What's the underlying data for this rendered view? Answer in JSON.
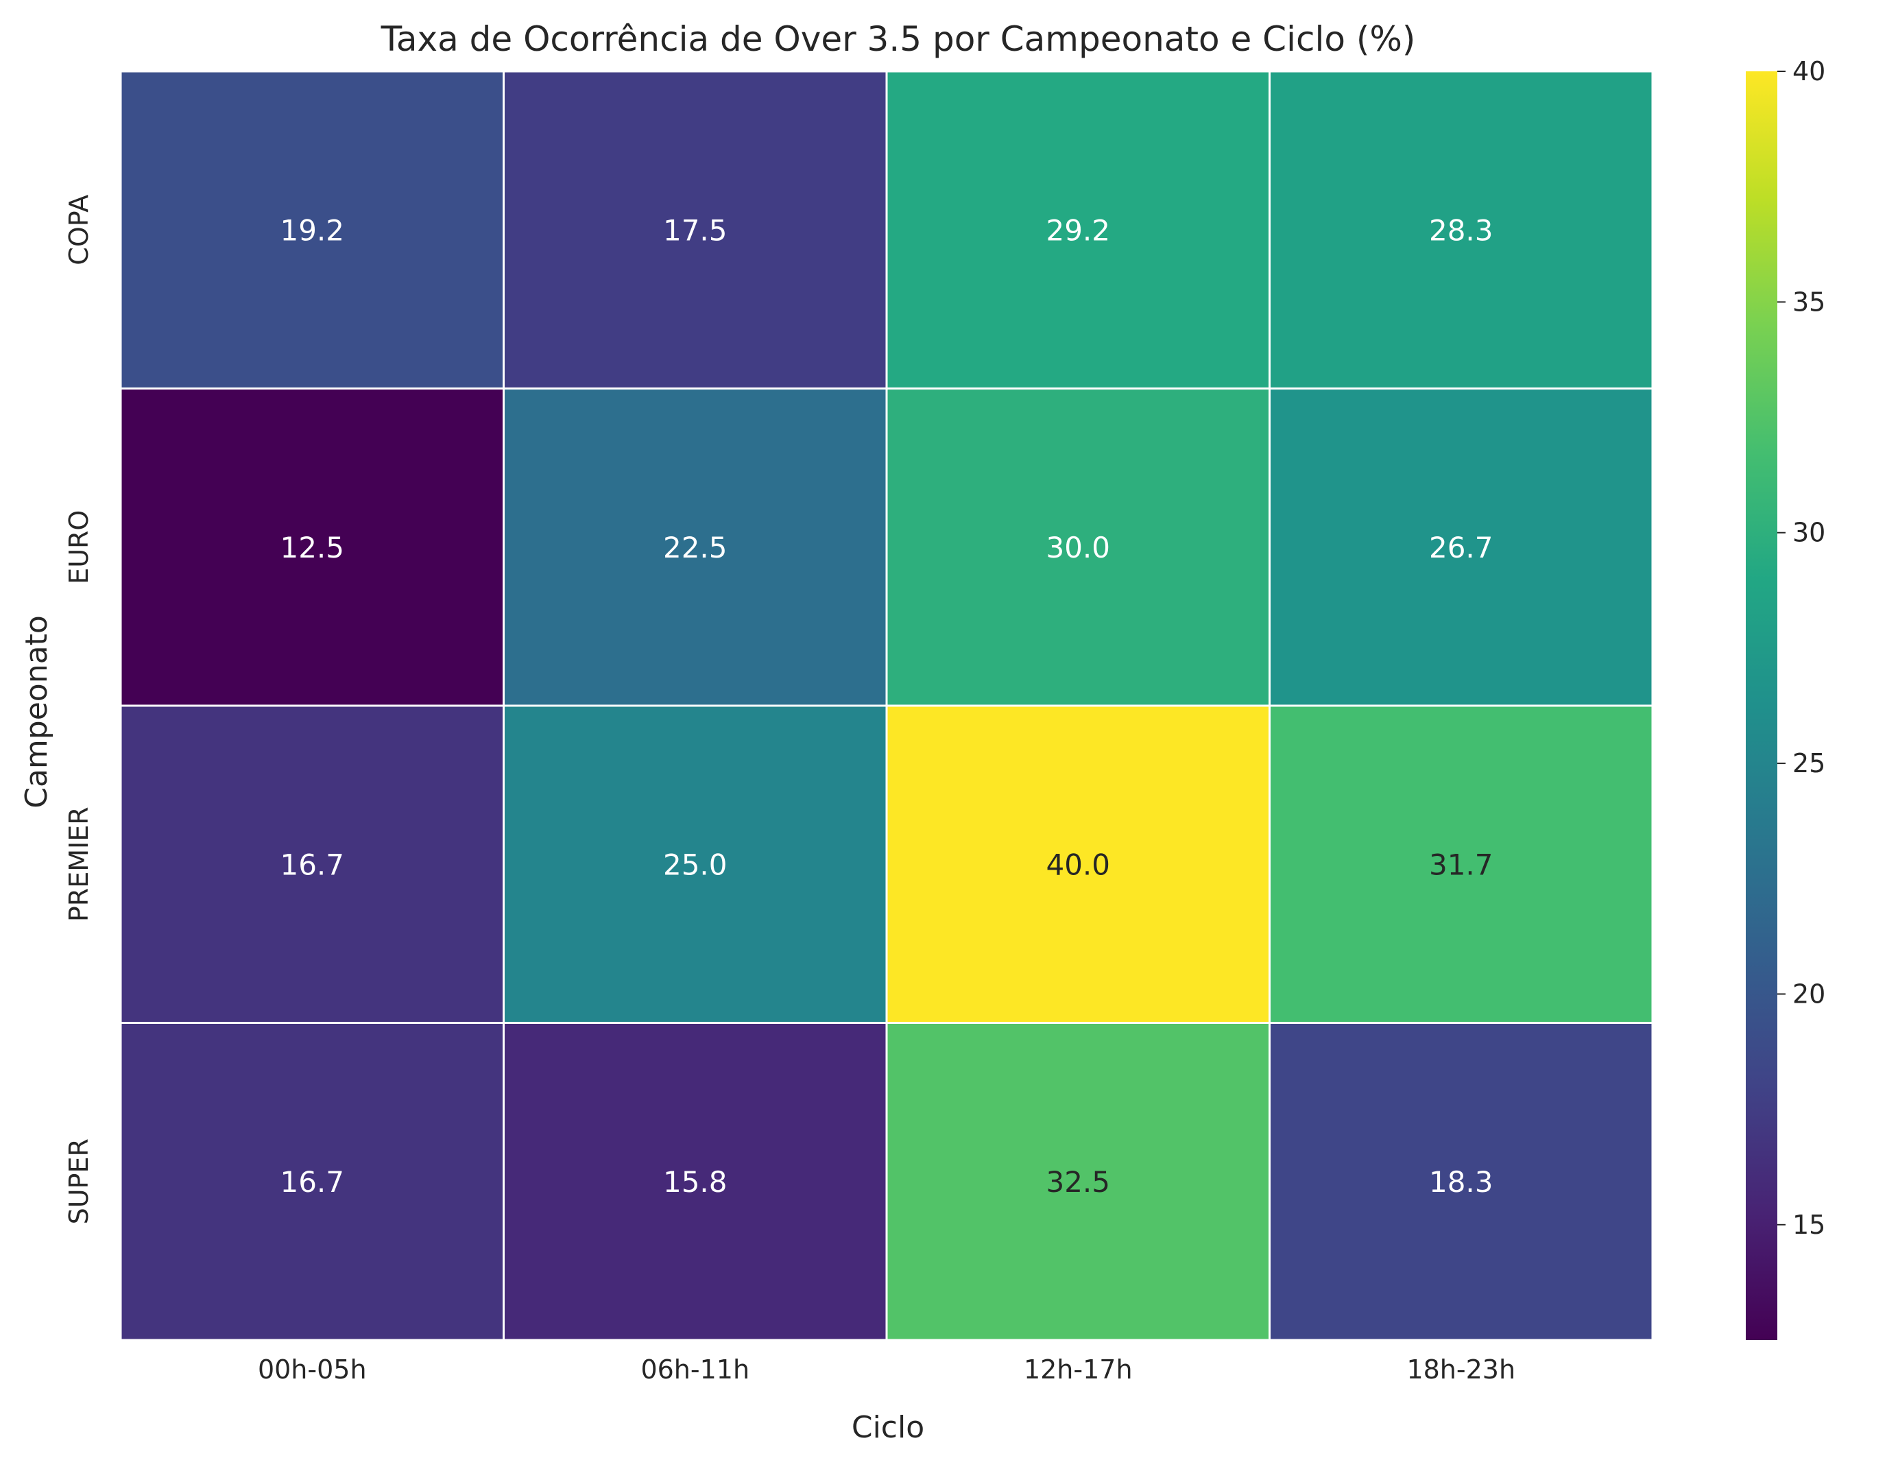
{
  "chart_data": {
    "type": "heatmap",
    "title": "Taxa de Ocorrência de Over 3.5 por Campeonato e Ciclo (%)",
    "xlabel": "Ciclo",
    "ylabel": "Campeonato",
    "x_categories": [
      "00h-05h",
      "06h-11h",
      "12h-17h",
      "18h-23h"
    ],
    "y_categories": [
      "COPA",
      "EURO",
      "PREMIER",
      "SUPER"
    ],
    "values": [
      [
        19.2,
        17.5,
        29.2,
        28.3
      ],
      [
        12.5,
        22.5,
        30.0,
        26.7
      ],
      [
        16.7,
        25.0,
        40.0,
        31.7
      ],
      [
        16.7,
        15.8,
        32.5,
        18.3
      ]
    ],
    "value_labels": [
      [
        "19.2",
        "17.5",
        "29.2",
        "28.3"
      ],
      [
        "12.5",
        "22.5",
        "30.0",
        "26.7"
      ],
      [
        "16.7",
        "25.0",
        "40.0",
        "31.7"
      ],
      [
        "16.7",
        "15.8",
        "32.5",
        "18.3"
      ]
    ],
    "colormap": "viridis",
    "colorbar": {
      "range": [
        12.5,
        40.0
      ],
      "ticks": [
        15,
        20,
        25,
        30,
        35,
        40
      ]
    },
    "grid": false,
    "cell_border_color": "#ffffff"
  }
}
